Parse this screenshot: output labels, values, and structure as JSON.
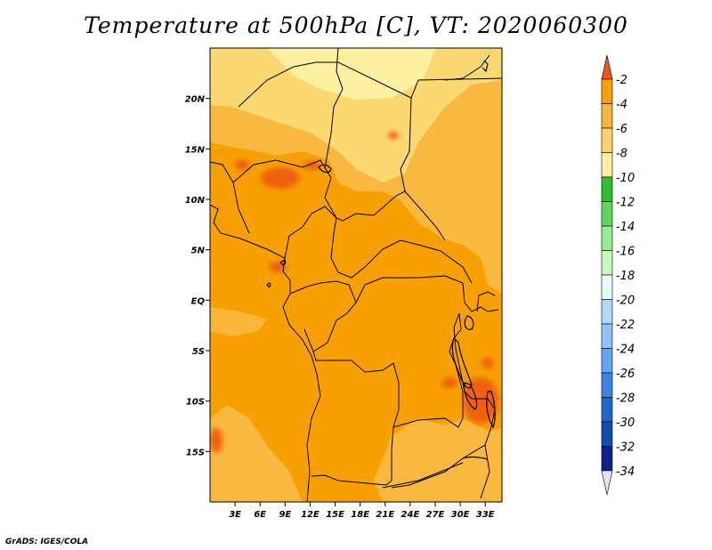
{
  "title": "Temperature at 500hPa [C], VT: 2020060300",
  "credit": "GrADS: IGES/COLA",
  "map": {
    "lat_labels": [
      "20N",
      "15N",
      "10N",
      "5N",
      "EQ",
      "5S",
      "10S",
      "15S"
    ],
    "lat_values": [
      20,
      15,
      10,
      5,
      0,
      -5,
      -10,
      -15
    ],
    "lon_labels": [
      "3E",
      "6E",
      "9E",
      "12E",
      "15E",
      "18E",
      "21E",
      "24E",
      "27E",
      "30E",
      "33E"
    ],
    "lon_values": [
      3,
      6,
      9,
      12,
      15,
      18,
      21,
      24,
      27,
      30,
      33
    ],
    "lon_range": [
      0,
      35
    ],
    "lat_range": [
      -20,
      25
    ],
    "colors": {
      "band_-2_to_-4": "#f06010",
      "band_-4_to_-6": "#f7a000",
      "band_-6_to_-8": "#f9b840",
      "band_-8_to_-10": "#fbd870",
      "band_-10_to_-12": "#fdf0a0",
      "border": "#000000"
    }
  },
  "legend": {
    "labels": [
      "-2",
      "-4",
      "-6",
      "-8",
      "-10",
      "-12",
      "-14",
      "-16",
      "-18",
      "-20",
      "-22",
      "-24",
      "-26",
      "-28",
      "-30",
      "-32",
      "-34"
    ],
    "colors": [
      "#f05a14",
      "#f9a000",
      "#f7b640",
      "#fbd26c",
      "#fdf0a0",
      "#2fc02e",
      "#5ed75a",
      "#98eb90",
      "#c8f8c0",
      "#e8fdf8",
      "#b2d8f8",
      "#8ec4f6",
      "#62a6f2",
      "#3a86e8",
      "#1f66d0",
      "#144cb0",
      "#10208a"
    ],
    "top_arrow_color": "#f2541c",
    "bottom_arrow_color": "#e0e4fa"
  }
}
